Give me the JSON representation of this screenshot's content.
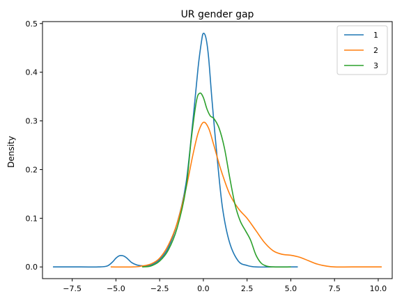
{
  "chart_data": {
    "type": "line",
    "title": "UR gender gap",
    "xlabel": "",
    "ylabel": "Density",
    "xlim": [
      -9.2,
      10.8
    ],
    "ylim": [
      -0.024,
      0.504
    ],
    "xticks": [
      -7.5,
      -5.0,
      -2.5,
      0.0,
      2.5,
      5.0,
      7.5,
      10.0
    ],
    "xtick_labels": [
      "−7.5",
      "−5.0",
      "−2.5",
      "0.0",
      "2.5",
      "5.0",
      "7.5",
      "10.0"
    ],
    "yticks": [
      0.0,
      0.1,
      0.2,
      0.3,
      0.4,
      0.5
    ],
    "ytick_labels": [
      "0.0",
      "0.1",
      "0.2",
      "0.3",
      "0.4",
      "0.5"
    ],
    "grid": false,
    "legend_position": "upper-right",
    "series": [
      {
        "name": "1",
        "color": "#1f77b4",
        "points": [
          [
            -8.6,
            0
          ],
          [
            -7.0,
            0
          ],
          [
            -6.0,
            0
          ],
          [
            -5.5,
            0.002
          ],
          [
            -5.2,
            0.01
          ],
          [
            -5.0,
            0.018
          ],
          [
            -4.8,
            0.023
          ],
          [
            -4.6,
            0.023
          ],
          [
            -4.4,
            0.019
          ],
          [
            -4.1,
            0.009
          ],
          [
            -3.8,
            0.004
          ],
          [
            -3.4,
            0.002
          ],
          [
            -3.0,
            0.004
          ],
          [
            -2.5,
            0.015
          ],
          [
            -2.0,
            0.04
          ],
          [
            -1.5,
            0.09
          ],
          [
            -1.0,
            0.17
          ],
          [
            -0.6,
            0.3
          ],
          [
            -0.3,
            0.41
          ],
          [
            -0.1,
            0.465
          ],
          [
            0.0,
            0.48
          ],
          [
            0.15,
            0.47
          ],
          [
            0.3,
            0.43
          ],
          [
            0.5,
            0.34
          ],
          [
            0.8,
            0.22
          ],
          [
            1.1,
            0.12
          ],
          [
            1.5,
            0.05
          ],
          [
            2.0,
            0.012
          ],
          [
            2.5,
            0.003
          ],
          [
            3.0,
            0.0
          ],
          [
            4.0,
            0
          ],
          [
            5.4,
            0
          ]
        ]
      },
      {
        "name": "2",
        "color": "#ff7f0e",
        "points": [
          [
            -5.3,
            0
          ],
          [
            -4.0,
            0
          ],
          [
            -3.5,
            0.002
          ],
          [
            -3.0,
            0.006
          ],
          [
            -2.5,
            0.018
          ],
          [
            -2.0,
            0.045
          ],
          [
            -1.5,
            0.09
          ],
          [
            -1.0,
            0.16
          ],
          [
            -0.6,
            0.23
          ],
          [
            -0.3,
            0.275
          ],
          [
            0.0,
            0.297
          ],
          [
            0.3,
            0.285
          ],
          [
            0.6,
            0.25
          ],
          [
            1.0,
            0.2
          ],
          [
            1.5,
            0.15
          ],
          [
            2.0,
            0.12
          ],
          [
            2.5,
            0.1
          ],
          [
            3.0,
            0.075
          ],
          [
            3.5,
            0.05
          ],
          [
            4.0,
            0.033
          ],
          [
            4.5,
            0.026
          ],
          [
            5.0,
            0.024
          ],
          [
            5.5,
            0.02
          ],
          [
            6.0,
            0.013
          ],
          [
            6.5,
            0.006
          ],
          [
            7.0,
            0.002
          ],
          [
            7.5,
            0.0
          ],
          [
            8.5,
            0
          ],
          [
            10.2,
            0
          ]
        ]
      },
      {
        "name": "3",
        "color": "#2ca02c",
        "points": [
          [
            -3.5,
            0
          ],
          [
            -3.0,
            0.002
          ],
          [
            -2.5,
            0.012
          ],
          [
            -2.0,
            0.035
          ],
          [
            -1.5,
            0.08
          ],
          [
            -1.0,
            0.16
          ],
          [
            -0.7,
            0.26
          ],
          [
            -0.4,
            0.34
          ],
          [
            -0.2,
            0.357
          ],
          [
            0.0,
            0.348
          ],
          [
            0.2,
            0.325
          ],
          [
            0.4,
            0.31
          ],
          [
            0.6,
            0.305
          ],
          [
            0.9,
            0.285
          ],
          [
            1.2,
            0.245
          ],
          [
            1.5,
            0.185
          ],
          [
            1.8,
            0.13
          ],
          [
            2.1,
            0.095
          ],
          [
            2.4,
            0.075
          ],
          [
            2.7,
            0.055
          ],
          [
            3.0,
            0.025
          ],
          [
            3.3,
            0.008
          ],
          [
            3.6,
            0.002
          ],
          [
            4.0,
            0
          ],
          [
            5.0,
            0
          ]
        ]
      }
    ]
  }
}
